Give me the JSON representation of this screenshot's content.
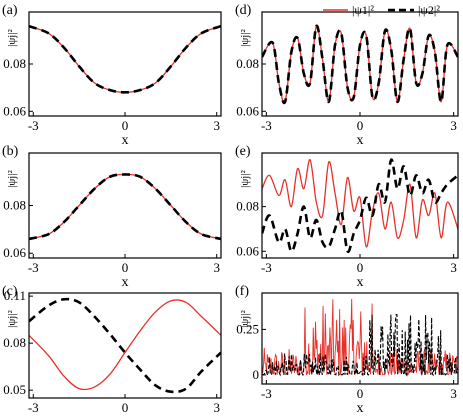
{
  "figure": {
    "legend": [
      {
        "label": "|ψ1|²",
        "color": "#e8302a",
        "dash": "solid"
      },
      {
        "label": "|ψ2|²",
        "color": "#000000",
        "dash": "dashed"
      }
    ]
  },
  "chart_data": [
    {
      "panel": "(a)",
      "type": "line",
      "xlabel": "x",
      "ylabel": "|ψj|²",
      "xlim": [
        -3.14,
        3.14
      ],
      "ylim": [
        0.058,
        0.102
      ],
      "xticks": [
        "-3",
        "0",
        "3"
      ],
      "yticks": [
        "0.06",
        "0.08"
      ],
      "series": [
        {
          "name": "|ψ1|²",
          "color": "#e8302a",
          "x": [
            -3.14,
            -2.5,
            -2.0,
            -1.5,
            -1.0,
            -0.5,
            0.0,
            0.5,
            1.0,
            1.5,
            2.0,
            2.5,
            3.14
          ],
          "y": [
            0.096,
            0.093,
            0.087,
            0.079,
            0.072,
            0.069,
            0.068,
            0.069,
            0.072,
            0.079,
            0.087,
            0.093,
            0.096
          ]
        },
        {
          "name": "|ψ2|²",
          "color": "#000000",
          "x": [
            -3.14,
            -2.5,
            -2.0,
            -1.5,
            -1.0,
            -0.5,
            0.0,
            0.5,
            1.0,
            1.5,
            2.0,
            2.5,
            3.14
          ],
          "y": [
            0.096,
            0.093,
            0.087,
            0.079,
            0.072,
            0.069,
            0.068,
            0.069,
            0.072,
            0.079,
            0.087,
            0.093,
            0.096
          ]
        }
      ]
    },
    {
      "panel": "(b)",
      "type": "line",
      "xlabel": "x",
      "ylabel": "|ψj|²",
      "xlim": [
        -3.14,
        3.14
      ],
      "ylim": [
        0.058,
        0.102
      ],
      "xticks": [
        "-3",
        "0",
        "3"
      ],
      "yticks": [
        "0.06",
        "0.08"
      ],
      "series": [
        {
          "name": "|ψ1|²",
          "color": "#e8302a",
          "x": [
            -3.14,
            -2.5,
            -2.0,
            -1.5,
            -1.0,
            -0.5,
            0.0,
            0.5,
            1.0,
            1.5,
            2.0,
            2.5,
            3.14
          ],
          "y": [
            0.066,
            0.068,
            0.073,
            0.08,
            0.087,
            0.092,
            0.093,
            0.092,
            0.087,
            0.08,
            0.073,
            0.068,
            0.066
          ]
        },
        {
          "name": "|ψ2|²",
          "color": "#000000",
          "x": [
            -3.14,
            -2.5,
            -2.0,
            -1.5,
            -1.0,
            -0.5,
            0.0,
            0.5,
            1.0,
            1.5,
            2.0,
            2.5,
            3.14
          ],
          "y": [
            0.066,
            0.068,
            0.073,
            0.08,
            0.087,
            0.092,
            0.093,
            0.092,
            0.087,
            0.08,
            0.073,
            0.068,
            0.066
          ]
        }
      ]
    },
    {
      "panel": "(c)",
      "type": "line",
      "xlabel": "x",
      "ylabel": "|ψj|²",
      "xlim": [
        -3.14,
        3.14
      ],
      "ylim": [
        0.045,
        0.112
      ],
      "xticks": [
        "-3",
        "0",
        "3"
      ],
      "yticks": [
        "0.05",
        "0.08",
        "0.11"
      ],
      "series": [
        {
          "name": "|ψ1|²",
          "color": "#e8302a",
          "x": [
            -3.14,
            -2.5,
            -2.0,
            -1.5,
            -1.0,
            -0.5,
            0.0,
            0.5,
            1.0,
            1.5,
            2.0,
            2.5,
            3.14
          ],
          "y": [
            0.085,
            0.072,
            0.059,
            0.051,
            0.052,
            0.06,
            0.074,
            0.088,
            0.1,
            0.107,
            0.106,
            0.097,
            0.085
          ]
        },
        {
          "name": "|ψ2|²",
          "color": "#000000",
          "x": [
            -3.14,
            -2.5,
            -2.0,
            -1.5,
            -1.0,
            -0.5,
            0.0,
            0.5,
            1.0,
            1.5,
            2.0,
            2.5,
            3.14
          ],
          "y": [
            0.094,
            0.104,
            0.108,
            0.106,
            0.097,
            0.086,
            0.074,
            0.063,
            0.053,
            0.049,
            0.051,
            0.062,
            0.074
          ]
        }
      ]
    },
    {
      "panel": "(d)",
      "type": "line",
      "xlabel": "x",
      "ylabel": "|ψj|²",
      "xlim": [
        -3.14,
        3.14
      ],
      "ylim": [
        0.058,
        0.102
      ],
      "xticks": [
        "-3",
        "0",
        "3"
      ],
      "yticks": [
        "0.06",
        "0.08"
      ],
      "series": [
        {
          "name": "|ψ1|²",
          "color": "#e8302a",
          "x": [
            -3.14,
            -2.8,
            -2.6,
            -2.4,
            -2.2,
            -2.0,
            -1.8,
            -1.6,
            -1.4,
            -1.2,
            -1.0,
            -0.8,
            -0.6,
            -0.4,
            -0.2,
            0.0,
            0.2,
            0.4,
            0.6,
            0.8,
            1.0,
            1.2,
            1.4,
            1.6,
            1.8,
            2.0,
            2.2,
            2.4,
            2.6,
            2.8,
            3.14
          ],
          "y": [
            0.083,
            0.089,
            0.072,
            0.064,
            0.085,
            0.091,
            0.076,
            0.072,
            0.096,
            0.082,
            0.064,
            0.088,
            0.093,
            0.07,
            0.066,
            0.088,
            0.092,
            0.066,
            0.072,
            0.094,
            0.086,
            0.064,
            0.082,
            0.095,
            0.072,
            0.076,
            0.092,
            0.085,
            0.064,
            0.088,
            0.083
          ]
        },
        {
          "name": "|ψ2|²",
          "color": "#000000",
          "x": [
            -3.14,
            -2.8,
            -2.6,
            -2.4,
            -2.2,
            -2.0,
            -1.8,
            -1.6,
            -1.4,
            -1.2,
            -1.0,
            -0.8,
            -0.6,
            -0.4,
            -0.2,
            0.0,
            0.2,
            0.4,
            0.6,
            0.8,
            1.0,
            1.2,
            1.4,
            1.6,
            1.8,
            2.0,
            2.2,
            2.4,
            2.6,
            2.8,
            3.14
          ],
          "y": [
            0.083,
            0.089,
            0.072,
            0.064,
            0.085,
            0.091,
            0.076,
            0.072,
            0.096,
            0.082,
            0.064,
            0.088,
            0.093,
            0.07,
            0.066,
            0.088,
            0.092,
            0.066,
            0.072,
            0.094,
            0.086,
            0.064,
            0.082,
            0.095,
            0.072,
            0.076,
            0.092,
            0.085,
            0.064,
            0.088,
            0.083
          ]
        }
      ]
    },
    {
      "panel": "(e)",
      "type": "line",
      "xlabel": "x",
      "ylabel": "|ψj|²",
      "xlim": [
        -3.14,
        3.14
      ],
      "ylim": [
        0.057,
        0.104
      ],
      "xticks": [
        "-3",
        "0",
        "3"
      ],
      "yticks": [
        "0.06",
        "0.08"
      ],
      "series": [
        {
          "name": "|ψ1|²",
          "color": "#e8302a",
          "x": [
            -3.14,
            -2.9,
            -2.6,
            -2.4,
            -2.2,
            -2.0,
            -1.8,
            -1.6,
            -1.4,
            -1.2,
            -1.0,
            -0.8,
            -0.6,
            -0.4,
            -0.2,
            0.0,
            0.2,
            0.4,
            0.6,
            0.8,
            1.0,
            1.2,
            1.4,
            1.6,
            1.8,
            2.0,
            2.2,
            2.4,
            2.6,
            2.8,
            3.14
          ],
          "y": [
            0.088,
            0.094,
            0.085,
            0.092,
            0.08,
            0.097,
            0.088,
            0.101,
            0.082,
            0.076,
            0.1,
            0.086,
            0.072,
            0.093,
            0.078,
            0.084,
            0.062,
            0.078,
            0.086,
            0.07,
            0.082,
            0.066,
            0.074,
            0.09,
            0.066,
            0.083,
            0.076,
            0.086,
            0.066,
            0.082,
            0.07
          ]
        },
        {
          "name": "|ψ2|²",
          "color": "#000000",
          "x": [
            -3.14,
            -2.9,
            -2.6,
            -2.4,
            -2.2,
            -2.0,
            -1.8,
            -1.6,
            -1.4,
            -1.2,
            -1.0,
            -0.8,
            -0.6,
            -0.4,
            -0.2,
            0.0,
            0.2,
            0.4,
            0.6,
            0.8,
            1.0,
            1.2,
            1.4,
            1.6,
            1.8,
            2.0,
            2.2,
            2.4,
            2.6,
            2.8,
            3.14
          ],
          "y": [
            0.068,
            0.076,
            0.064,
            0.07,
            0.06,
            0.068,
            0.08,
            0.066,
            0.074,
            0.064,
            0.062,
            0.07,
            0.078,
            0.06,
            0.068,
            0.074,
            0.084,
            0.076,
            0.09,
            0.082,
            0.101,
            0.088,
            0.098,
            0.085,
            0.094,
            0.086,
            0.092,
            0.082,
            0.086,
            0.09,
            0.094
          ]
        }
      ]
    },
    {
      "panel": "(f)",
      "type": "line",
      "xlabel": "x",
      "ylabel": "|ψj|²",
      "xlim": [
        -3.14,
        3.14
      ],
      "ylim": [
        -0.05,
        0.45
      ],
      "xticks": [
        "-3",
        "0",
        "3"
      ],
      "yticks": [
        "0",
        "0.25"
      ],
      "noise": true,
      "series": [
        {
          "name": "|ψ1|²",
          "color": "#e8302a"
        },
        {
          "name": "|ψ2|²",
          "color": "#000000"
        }
      ]
    }
  ]
}
